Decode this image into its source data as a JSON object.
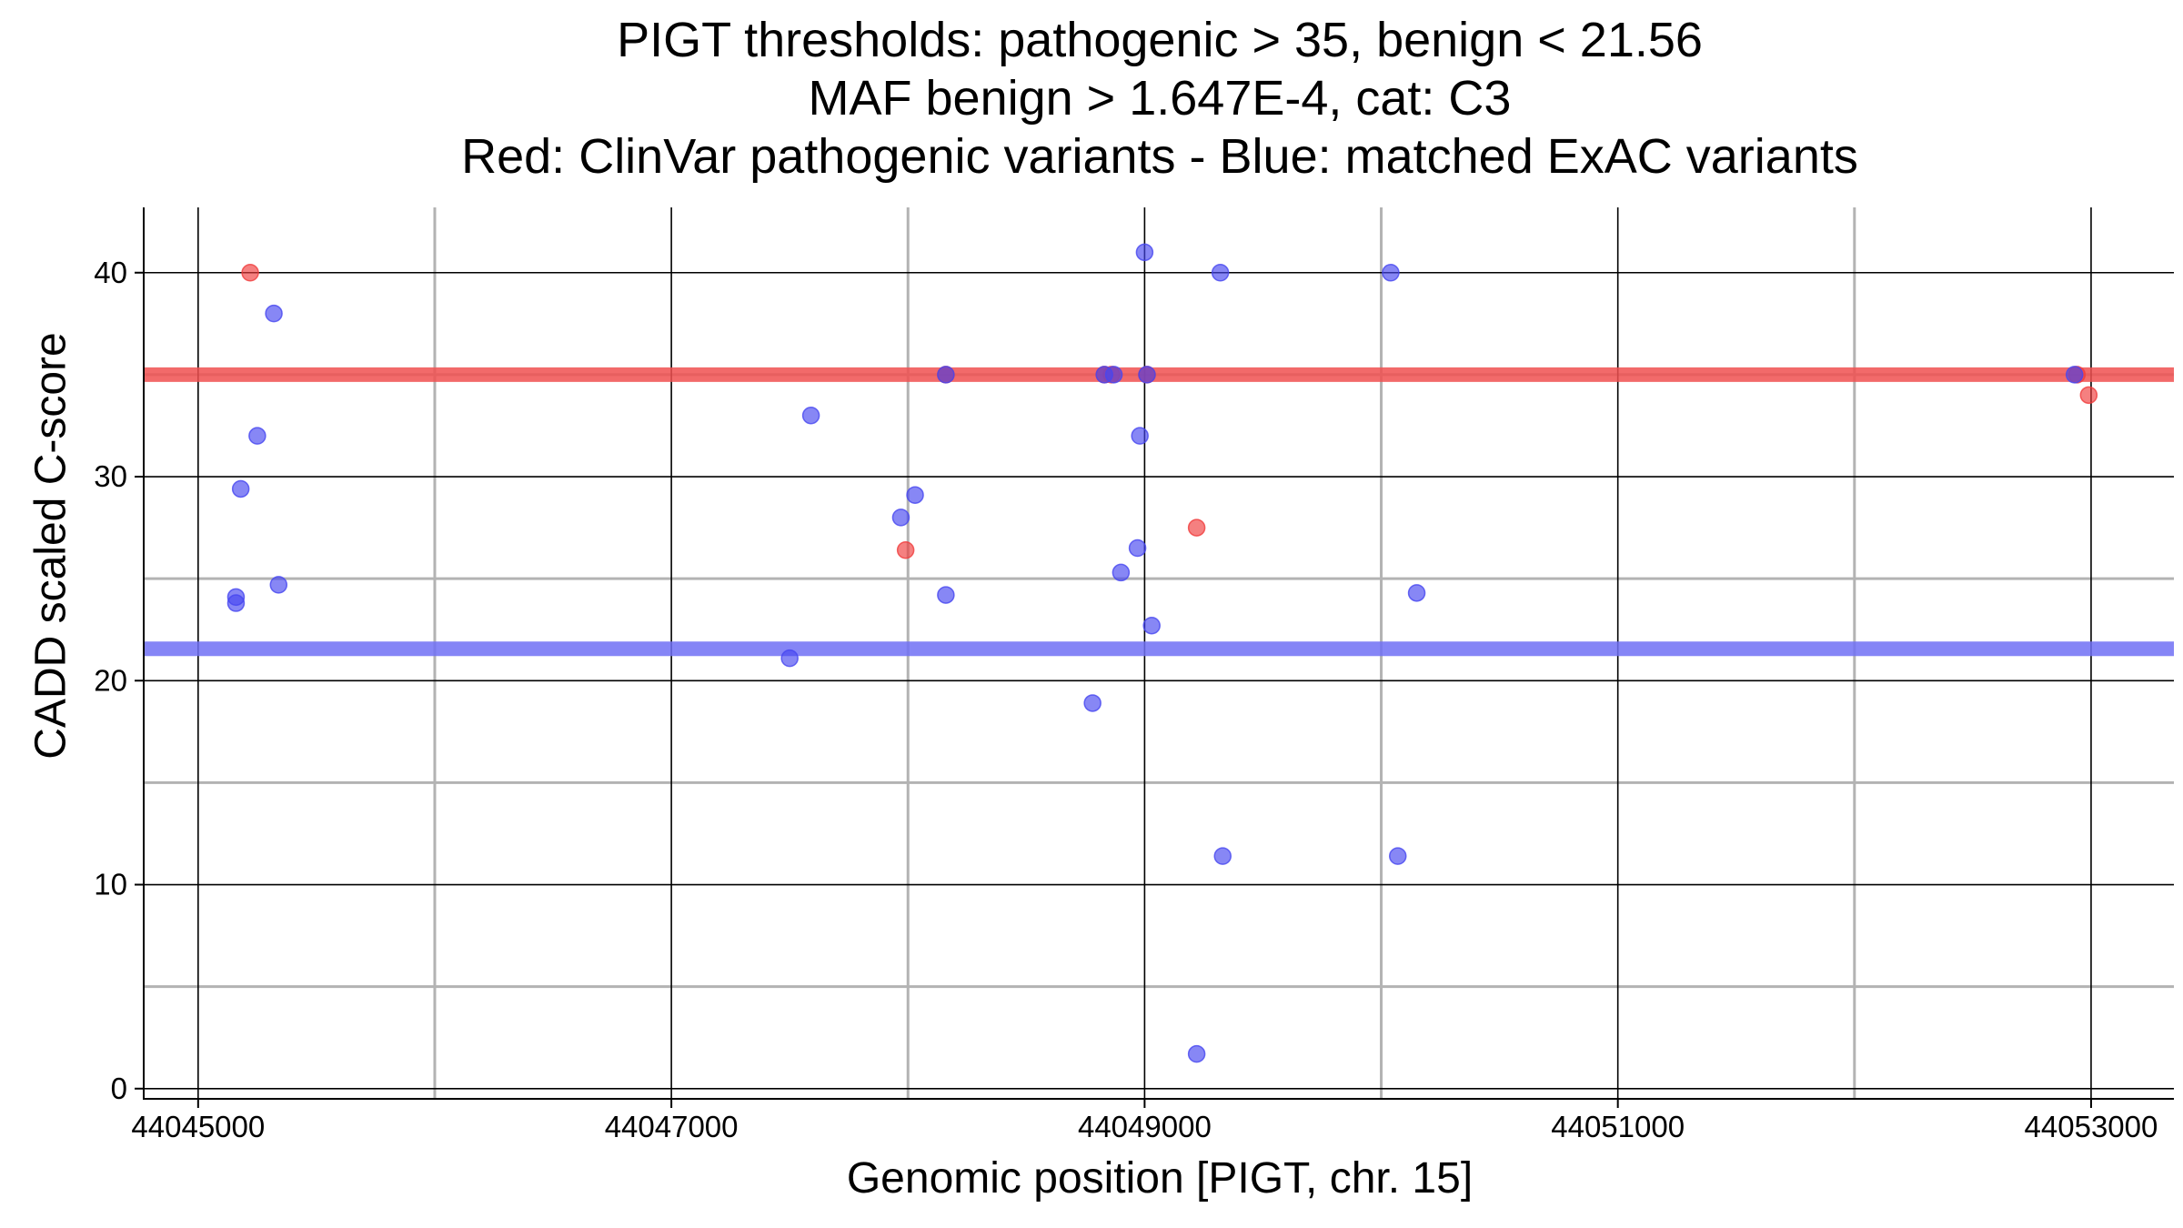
{
  "chart_data": {
    "type": "scatter",
    "title_lines": [
      "PIGT thresholds: pathogenic > 35, benign < 21.56",
      "MAF benign > 1.647E-4, cat: C3",
      "Red: ClinVar pathogenic variants - Blue: matched ExAC variants"
    ],
    "xlabel": "Genomic position [PIGT, chr. 15]",
    "ylabel": "CADD scaled C-score",
    "xlim": [
      44044770,
      44053350
    ],
    "ylim": [
      -0.5,
      43.2
    ],
    "x_major_ticks": [
      44045000,
      44047000,
      44049000,
      44051000,
      44053000
    ],
    "x_tick_labels": [
      "44045000",
      "44047000",
      "44049000",
      "44051000",
      "44053000"
    ],
    "x_minor_ticks": [
      44046000,
      44048000,
      44050000,
      44052000
    ],
    "y_major_ticks": [
      0,
      10,
      20,
      30,
      40
    ],
    "y_tick_labels": [
      "0",
      "10",
      "20",
      "30",
      "40"
    ],
    "y_minor_ticks": [
      5,
      15,
      25,
      35
    ],
    "grid": true,
    "thresholds": [
      {
        "name": "pathogenic",
        "value": 35,
        "color": "#f05050"
      },
      {
        "name": "benign",
        "value": 21.56,
        "color": "#7070f5"
      }
    ],
    "series": [
      {
        "color": "#f03c3c",
        "points": [
          {
            "x": 44045220,
            "y": 40
          },
          {
            "x": 44047990,
            "y": 26.4
          },
          {
            "x": 44048160,
            "y": 35
          },
          {
            "x": 44048830,
            "y": 35
          },
          {
            "x": 44048860,
            "y": 35
          },
          {
            "x": 44049010,
            "y": 35
          },
          {
            "x": 44049220,
            "y": 27.5
          },
          {
            "x": 44052940,
            "y": 35
          },
          {
            "x": 44052990,
            "y": 34
          }
        ]
      },
      {
        "color": "#4646f0",
        "points": [
          {
            "x": 44045160,
            "y": 24.1
          },
          {
            "x": 44045160,
            "y": 23.8
          },
          {
            "x": 44045180,
            "y": 29.4
          },
          {
            "x": 44045250,
            "y": 32
          },
          {
            "x": 44045320,
            "y": 38
          },
          {
            "x": 44045340,
            "y": 24.7
          },
          {
            "x": 44047500,
            "y": 21.1
          },
          {
            "x": 44047590,
            "y": 33
          },
          {
            "x": 44047970,
            "y": 28
          },
          {
            "x": 44048030,
            "y": 29.1
          },
          {
            "x": 44048160,
            "y": 24.2
          },
          {
            "x": 44048160,
            "y": 35
          },
          {
            "x": 44048780,
            "y": 18.9
          },
          {
            "x": 44048830,
            "y": 35
          },
          {
            "x": 44048870,
            "y": 35
          },
          {
            "x": 44048900,
            "y": 25.3
          },
          {
            "x": 44048970,
            "y": 26.5
          },
          {
            "x": 44048980,
            "y": 32
          },
          {
            "x": 44049000,
            "y": 41
          },
          {
            "x": 44049010,
            "y": 35
          },
          {
            "x": 44049030,
            "y": 22.7
          },
          {
            "x": 44049220,
            "y": 1.7
          },
          {
            "x": 44049320,
            "y": 40
          },
          {
            "x": 44049330,
            "y": 11.4
          },
          {
            "x": 44050040,
            "y": 40
          },
          {
            "x": 44050070,
            "y": 11.4
          },
          {
            "x": 44050150,
            "y": 24.3
          },
          {
            "x": 44052930,
            "y": 35
          }
        ]
      }
    ]
  }
}
